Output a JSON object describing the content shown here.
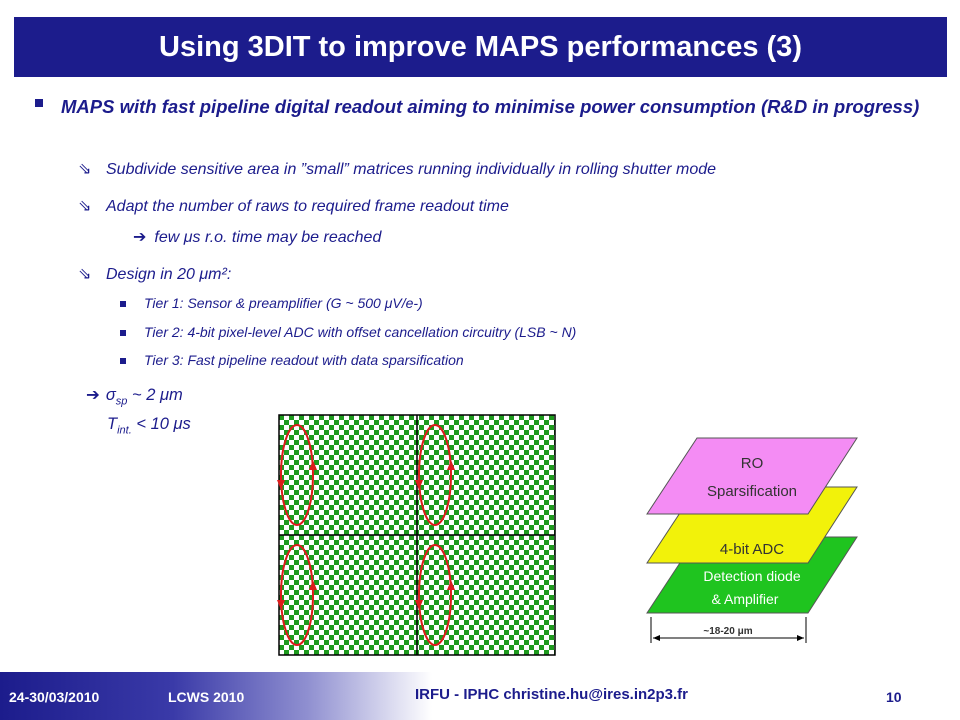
{
  "slide": {
    "title": "Using 3DIT to improve MAPS performances (3)",
    "main_bullet": "MAPS with fast pipeline digital readout aiming to minimise power consumption (R&D in progress)",
    "sub_items": [
      "Subdivide sensitive area in ”small” matrices  running individually in rolling shutter mode",
      "Adapt the number of raws to required frame readout time",
      "Design in 20 μm²:"
    ],
    "arrow_note": "few μs r.o. time may be reached",
    "tiers": [
      "Tier 1: Sensor & preamplifier  (G ~ 500 μV/e-)",
      "Tier 2: 4-bit pixel-level ADC with offset cancellation circuitry (LSB ~ N)",
      "Tier 3: Fast pipeline readout with data sparsification"
    ],
    "sigma_line": {
      "symbol": "σ",
      "subscript": "sp",
      "rest": " ~ 2 μm"
    },
    "tint_line": {
      "symbol": "T",
      "subscript": "int.",
      "rest": " < 10 μs"
    }
  },
  "layer_diagram": {
    "top_layer": {
      "line1": "RO",
      "line2": "Sparsification",
      "color": "#f48cf4"
    },
    "mid_layer": {
      "label": "4-bit ADC",
      "color": "#f2f20a"
    },
    "bottom_layer": {
      "line1": "Detection diode",
      "line2": "& Amplifier",
      "color": "#1fc41f"
    },
    "dimension": "~18-20 μm"
  },
  "matrix_diagram": {
    "check_color": "#1e9a1e",
    "loop_color": "#dd1c1c"
  },
  "footer": {
    "date": "24-30/03/2010",
    "conference": "LCWS 2010",
    "institute": "IRFU - IPHC   christine.hu@ires.in2p3.fr",
    "page": "10"
  },
  "colors": {
    "title_bar": "#1c1c8c",
    "text": "#1c1c8c"
  },
  "icons": {
    "main_bullet": "square-bullet-icon",
    "sub_marker": "arrow-marker-icon",
    "arrow": "right-arrow-icon"
  }
}
